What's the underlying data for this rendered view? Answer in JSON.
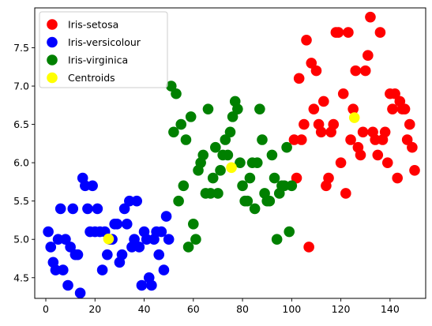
{
  "chart_data": {
    "type": "scatter",
    "title": "",
    "xlabel": "",
    "ylabel": "",
    "xlim": [
      -4.5,
      154.5
    ],
    "ylim": [
      4.23,
      8.02
    ],
    "xticks": [
      0,
      20,
      40,
      60,
      80,
      100,
      120,
      140
    ],
    "yticks": [
      4.5,
      5.0,
      5.5,
      6.0,
      6.5,
      7.0,
      7.5
    ],
    "ytick_labels": [
      "4.5",
      "5.0",
      "5.5",
      "6.0",
      "6.5",
      "7.0",
      "7.5"
    ],
    "grid": false,
    "legend_position": "top-left",
    "series": [
      {
        "name": "Iris-setosa",
        "color": "#ff0000",
        "points": [
          [
            101,
            6.3
          ],
          [
            103,
            7.1
          ],
          [
            104,
            6.3
          ],
          [
            105,
            6.5
          ],
          [
            106,
            7.6
          ],
          [
            107,
            4.9
          ],
          [
            108,
            7.3
          ],
          [
            109,
            6.7
          ],
          [
            110,
            7.2
          ],
          [
            111,
            6.5
          ],
          [
            112,
            6.4
          ],
          [
            113,
            6.8
          ],
          [
            114,
            5.7
          ],
          [
            115,
            5.8
          ],
          [
            116,
            6.4
          ],
          [
            117,
            6.5
          ],
          [
            118,
            7.7
          ],
          [
            119,
            7.7
          ],
          [
            120,
            6.0
          ],
          [
            121,
            6.9
          ],
          [
            122,
            5.6
          ],
          [
            123,
            7.7
          ],
          [
            124,
            6.3
          ],
          [
            125,
            6.7
          ],
          [
            126,
            7.2
          ],
          [
            127,
            6.2
          ],
          [
            128,
            6.1
          ],
          [
            129,
            6.4
          ],
          [
            130,
            7.2
          ],
          [
            131,
            7.4
          ],
          [
            132,
            7.9
          ],
          [
            133,
            6.4
          ],
          [
            134,
            6.3
          ],
          [
            135,
            6.1
          ],
          [
            136,
            7.7
          ],
          [
            137,
            6.3
          ],
          [
            138,
            6.4
          ],
          [
            139,
            6.0
          ],
          [
            140,
            6.9
          ],
          [
            141,
            6.7
          ],
          [
            142,
            6.9
          ],
          [
            143,
            5.8
          ],
          [
            144,
            6.8
          ],
          [
            145,
            6.7
          ],
          [
            146,
            6.7
          ],
          [
            147,
            6.3
          ],
          [
            148,
            6.5
          ],
          [
            149,
            6.2
          ],
          [
            150,
            5.9
          ],
          [
            102,
            5.8
          ]
        ]
      },
      {
        "name": "Iris-versicolour",
        "color": "#0000ff",
        "points": [
          [
            1,
            5.1
          ],
          [
            2,
            4.9
          ],
          [
            3,
            4.7
          ],
          [
            4,
            4.6
          ],
          [
            5,
            5.0
          ],
          [
            6,
            5.4
          ],
          [
            7,
            4.6
          ],
          [
            8,
            5.0
          ],
          [
            9,
            4.4
          ],
          [
            10,
            4.9
          ],
          [
            11,
            5.4
          ],
          [
            12,
            4.8
          ],
          [
            13,
            4.8
          ],
          [
            14,
            4.3
          ],
          [
            15,
            5.8
          ],
          [
            16,
            5.7
          ],
          [
            17,
            5.4
          ],
          [
            18,
            5.1
          ],
          [
            19,
            5.7
          ],
          [
            20,
            5.1
          ],
          [
            21,
            5.4
          ],
          [
            22,
            5.1
          ],
          [
            23,
            4.6
          ],
          [
            24,
            5.1
          ],
          [
            25,
            4.8
          ],
          [
            26,
            5.0
          ],
          [
            27,
            5.0
          ],
          [
            28,
            5.2
          ],
          [
            29,
            5.2
          ],
          [
            30,
            4.7
          ],
          [
            31,
            4.8
          ],
          [
            32,
            5.4
          ],
          [
            33,
            5.2
          ],
          [
            34,
            5.5
          ],
          [
            35,
            4.9
          ],
          [
            36,
            5.0
          ],
          [
            37,
            5.5
          ],
          [
            38,
            4.9
          ],
          [
            39,
            4.4
          ],
          [
            40,
            5.1
          ],
          [
            41,
            5.0
          ],
          [
            42,
            4.5
          ],
          [
            43,
            4.4
          ],
          [
            44,
            5.0
          ],
          [
            45,
            5.1
          ],
          [
            46,
            4.8
          ],
          [
            47,
            5.1
          ],
          [
            48,
            4.6
          ],
          [
            49,
            5.3
          ],
          [
            50,
            5.0
          ]
        ]
      },
      {
        "name": "Iris-virginica",
        "color": "#008000",
        "points": [
          [
            51,
            7.0
          ],
          [
            52,
            6.4
          ],
          [
            53,
            6.9
          ],
          [
            54,
            5.5
          ],
          [
            55,
            6.5
          ],
          [
            56,
            5.7
          ],
          [
            57,
            6.3
          ],
          [
            58,
            4.9
          ],
          [
            59,
            6.6
          ],
          [
            60,
            5.2
          ],
          [
            61,
            5.0
          ],
          [
            62,
            5.9
          ],
          [
            63,
            6.0
          ],
          [
            64,
            6.1
          ],
          [
            65,
            5.6
          ],
          [
            66,
            6.7
          ],
          [
            67,
            5.6
          ],
          [
            68,
            5.8
          ],
          [
            69,
            6.2
          ],
          [
            70,
            5.6
          ],
          [
            71,
            5.9
          ],
          [
            72,
            6.1
          ],
          [
            73,
            6.3
          ],
          [
            74,
            6.1
          ],
          [
            75,
            6.4
          ],
          [
            76,
            6.6
          ],
          [
            77,
            6.8
          ],
          [
            78,
            6.7
          ],
          [
            79,
            6.0
          ],
          [
            80,
            5.7
          ],
          [
            81,
            5.5
          ],
          [
            82,
            5.5
          ],
          [
            83,
            5.8
          ],
          [
            84,
            6.0
          ],
          [
            85,
            5.4
          ],
          [
            86,
            6.0
          ],
          [
            87,
            6.7
          ],
          [
            88,
            6.3
          ],
          [
            89,
            5.6
          ],
          [
            90,
            5.5
          ],
          [
            91,
            5.5
          ],
          [
            92,
            6.1
          ],
          [
            93,
            5.8
          ],
          [
            94,
            5.0
          ],
          [
            95,
            5.6
          ],
          [
            96,
            5.7
          ],
          [
            97,
            5.7
          ],
          [
            98,
            6.2
          ],
          [
            99,
            5.1
          ],
          [
            100,
            5.7
          ]
        ]
      },
      {
        "name": "Centroids",
        "color": "#ffff00",
        "points": [
          [
            25.5,
            5.006
          ],
          [
            75.5,
            5.936
          ],
          [
            125.5,
            6.588
          ]
        ]
      }
    ]
  }
}
